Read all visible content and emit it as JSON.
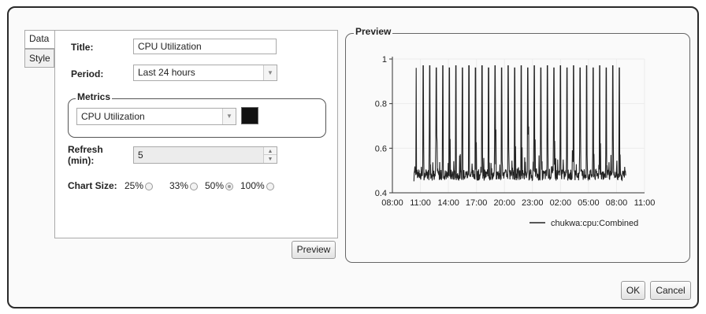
{
  "tabs": {
    "data": "Data",
    "style": "Style"
  },
  "form": {
    "title_label": "Title:",
    "title_value": "CPU Utilization",
    "period_label": "Period:",
    "period_value": "Last 24 hours",
    "metrics_legend": "Metrics",
    "metric_value": "CPU Utilization",
    "metric_color": "#111111",
    "refresh_label_1": "Refresh",
    "refresh_label_2": "(min):",
    "refresh_value": "5",
    "chart_size_label": "Chart Size:",
    "chart_size_options": [
      {
        "label": "25%",
        "selected": false
      },
      {
        "label": "33%",
        "selected": false
      },
      {
        "label": "50%",
        "selected": true
      },
      {
        "label": "100%",
        "selected": false
      }
    ],
    "preview_button": "Preview"
  },
  "preview": {
    "legend": "Preview"
  },
  "footer": {
    "ok": "OK",
    "cancel": "Cancel"
  },
  "chart_data": {
    "type": "line",
    "title": "",
    "xlabel": "",
    "ylabel": "",
    "x_ticks": [
      "08:00",
      "11:00",
      "14:00",
      "17:00",
      "20:00",
      "23:00",
      "02:00",
      "05:00",
      "08:00",
      "11:00"
    ],
    "y_ticks": [
      "0.4",
      "0.6",
      "0.8",
      "1"
    ],
    "ylim": [
      0.4,
      1.0
    ],
    "x_range_hours": [
      0,
      27
    ],
    "series": [
      {
        "name": "chukwa:cpu:Combined",
        "color": "#222222",
        "baseline": 0.48,
        "start_hour": 2.3,
        "end_hour": 25.0,
        "spike_hours": [
          2.55,
          3.3,
          4.0,
          4.7,
          5.4,
          6.1,
          6.8,
          7.5,
          8.2,
          8.9,
          9.6,
          10.3,
          11.0,
          11.7,
          12.4,
          13.1,
          13.8,
          14.5,
          15.2,
          15.9,
          16.6,
          17.3,
          18.0,
          18.7,
          19.4,
          20.1,
          20.8,
          21.5,
          22.2,
          22.9,
          23.6,
          24.3
        ],
        "spike_values": [
          0.96,
          0.97,
          0.97,
          0.96,
          0.97,
          0.96,
          0.97,
          0.96,
          0.97,
          0.96,
          0.97,
          0.96,
          0.97,
          0.96,
          0.97,
          0.96,
          0.97,
          0.96,
          0.97,
          0.96,
          0.97,
          0.96,
          0.97,
          0.96,
          0.97,
          0.96,
          0.97,
          0.96,
          0.97,
          0.96,
          0.97,
          0.96
        ]
      }
    ],
    "legend": "bottom-right",
    "grid": true
  }
}
